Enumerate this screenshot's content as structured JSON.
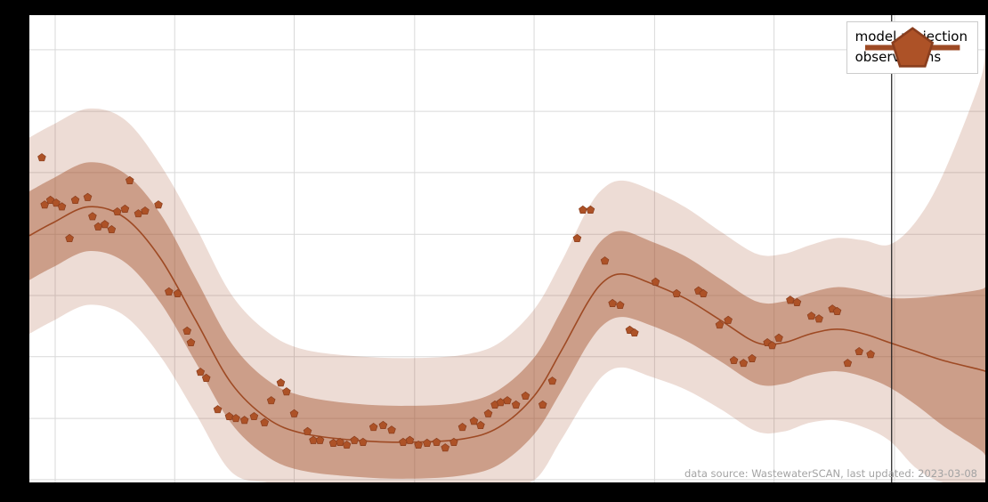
{
  "page": {
    "background": "#000000",
    "plot_background": "#ffffff"
  },
  "legend": {
    "items": [
      {
        "label": "model projection",
        "swatch": "line"
      },
      {
        "label": "observations",
        "swatch": "pentagon"
      }
    ]
  },
  "footer": {
    "text": "data source: WastewaterSCAN, last updated: 2023-03-08"
  },
  "chart_data": {
    "type": "line",
    "title": "",
    "xlabel": "",
    "ylabel": "",
    "x_range": [
      0,
      100
    ],
    "y_range": [
      0,
      100
    ],
    "grid": true,
    "gridlines_x": [
      2.7,
      15.2,
      27.7,
      40.3,
      52.8,
      65.4,
      77.9,
      90.5
    ],
    "gridlines_y": [
      0.6,
      13.7,
      26.9,
      40.0,
      53.1,
      66.3,
      79.4,
      92.6
    ],
    "vline_x": 90.2,
    "colors": {
      "line": "#9e4a24",
      "marker": "#ad5227",
      "marker_edge": "#8a3e1e",
      "band_fill_outer": "rgba(163,81,44,0.20)",
      "band_fill_inner": "rgba(163,81,44,0.45)",
      "grid": "#d9d9d9",
      "vline": "#1c1c1c"
    },
    "series": [
      {
        "name": "model projection",
        "type": "line",
        "x": [
          0,
          2.5,
          6.2,
          10.0,
          13.7,
          17.4,
          21.1,
          24.9,
          28.6,
          34.2,
          39.8,
          45.3,
          49.1,
          52.8,
          55.6,
          58.4,
          60.2,
          62.1,
          64.9,
          68.6,
          72.3,
          76.1,
          78.9,
          81.7,
          84.5,
          87.3,
          90.0,
          92.8,
          95.6,
          99.3,
          100
        ],
        "y": [
          52.8,
          55.6,
          59.0,
          56.6,
          48.0,
          34.7,
          21.3,
          13.7,
          10.5,
          9.0,
          8.6,
          9.3,
          11.8,
          18.5,
          28.0,
          38.5,
          43.2,
          44.6,
          42.7,
          39.4,
          34.7,
          29.9,
          29.9,
          31.8,
          32.8,
          31.8,
          29.9,
          28.0,
          26.1,
          24.2,
          23.8
        ]
      }
    ],
    "bands": [
      {
        "name": "outer 95% interval",
        "x": [
          0,
          2.5,
          6.2,
          10.0,
          13.7,
          17.4,
          21.1,
          24.9,
          28.6,
          34.2,
          39.8,
          45.3,
          49.1,
          52.8,
          55.6,
          58.4,
          60.2,
          62.1,
          64.9,
          68.6,
          72.3,
          76.1,
          78.9,
          81.7,
          84.5,
          87.3,
          90.0,
          92.8,
          95.6,
          99.3,
          100
        ],
        "upper": [
          73.8,
          76.6,
          80.0,
          77.6,
          68.0,
          54.7,
          40.3,
          32.2,
          28.5,
          27.0,
          26.6,
          27.3,
          29.8,
          37.0,
          47.0,
          58.5,
          63.2,
          64.6,
          62.7,
          58.9,
          53.7,
          48.9,
          48.9,
          50.8,
          52.3,
          51.8,
          50.9,
          56.0,
          66.0,
          85.0,
          92.0
        ],
        "lower": [
          31.8,
          34.6,
          38.0,
          35.6,
          27.0,
          14.7,
          2.3,
          0,
          0,
          0,
          0,
          0,
          0,
          0.5,
          9.0,
          18.5,
          23.2,
          24.6,
          22.7,
          19.9,
          15.7,
          10.9,
          10.9,
          12.8,
          13.3,
          11.8,
          8.9,
          3.0,
          0,
          0,
          0
        ]
      },
      {
        "name": "inner 50% interval",
        "x": [
          0,
          2.5,
          6.2,
          10.0,
          13.7,
          17.4,
          21.1,
          24.9,
          28.6,
          34.2,
          39.8,
          45.3,
          49.1,
          52.8,
          55.6,
          58.4,
          60.2,
          62.1,
          64.9,
          68.6,
          72.3,
          76.1,
          78.9,
          81.7,
          84.5,
          87.3,
          90.0,
          92.8,
          95.6,
          99.3,
          100
        ],
        "upper": [
          62.3,
          65.1,
          68.5,
          66.1,
          57.5,
          43.7,
          29.9,
          21.9,
          18.5,
          16.8,
          16.4,
          17.1,
          19.8,
          26.7,
          36.6,
          47.5,
          52.4,
          53.8,
          51.7,
          48.4,
          43.5,
          38.7,
          38.7,
          40.6,
          41.8,
          41.0,
          39.5,
          39.5,
          40.1,
          41.2,
          41.8
        ],
        "lower": [
          43.3,
          46.1,
          49.5,
          47.1,
          38.5,
          25.7,
          12.7,
          5.5,
          2.5,
          1.2,
          0.8,
          1.5,
          3.8,
          10.3,
          19.4,
          29.5,
          34.0,
          35.4,
          33.7,
          30.4,
          25.9,
          21.1,
          21.1,
          23.0,
          23.8,
          22.6,
          20.3,
          16.5,
          12.1,
          7.2,
          5.8
        ]
      }
    ],
    "observations": {
      "name": "observations",
      "marker": "pentagon",
      "points": [
        [
          1.3,
          69.5
        ],
        [
          1.6,
          59.4
        ],
        [
          2.2,
          60.4
        ],
        [
          2.8,
          59.8
        ],
        [
          3.4,
          59.0
        ],
        [
          4.2,
          52.2
        ],
        [
          4.8,
          60.4
        ],
        [
          6.1,
          61.0
        ],
        [
          6.6,
          56.9
        ],
        [
          7.2,
          54.7
        ],
        [
          7.9,
          55.2
        ],
        [
          8.6,
          54.1
        ],
        [
          9.2,
          57.9
        ],
        [
          10.0,
          58.5
        ],
        [
          10.5,
          64.6
        ],
        [
          11.4,
          57.5
        ],
        [
          12.1,
          58.1
        ],
        [
          13.5,
          59.4
        ],
        [
          14.6,
          40.8
        ],
        [
          15.5,
          40.4
        ],
        [
          16.5,
          32.4
        ],
        [
          16.9,
          29.9
        ],
        [
          17.9,
          23.6
        ],
        [
          18.5,
          22.3
        ],
        [
          19.7,
          15.6
        ],
        [
          20.9,
          14.1
        ],
        [
          21.6,
          13.7
        ],
        [
          22.5,
          13.3
        ],
        [
          23.5,
          14.1
        ],
        [
          24.6,
          12.8
        ],
        [
          25.3,
          17.5
        ],
        [
          26.3,
          21.3
        ],
        [
          26.9,
          19.4
        ],
        [
          27.7,
          14.7
        ],
        [
          29.1,
          10.9
        ],
        [
          29.7,
          9.0
        ],
        [
          30.4,
          9.0
        ],
        [
          31.8,
          8.4
        ],
        [
          32.5,
          8.6
        ],
        [
          33.2,
          8.0
        ],
        [
          34.0,
          9.0
        ],
        [
          34.9,
          8.6
        ],
        [
          36.0,
          11.8
        ],
        [
          37.0,
          12.2
        ],
        [
          37.9,
          11.2
        ],
        [
          39.1,
          8.6
        ],
        [
          39.8,
          9.0
        ],
        [
          40.7,
          8.0
        ],
        [
          41.6,
          8.4
        ],
        [
          42.6,
          8.6
        ],
        [
          43.5,
          7.4
        ],
        [
          44.4,
          8.6
        ],
        [
          45.3,
          11.8
        ],
        [
          46.5,
          13.1
        ],
        [
          47.2,
          12.2
        ],
        [
          48.0,
          14.7
        ],
        [
          48.7,
          16.6
        ],
        [
          49.3,
          17.1
        ],
        [
          50.0,
          17.5
        ],
        [
          50.9,
          16.6
        ],
        [
          51.9,
          18.5
        ],
        [
          53.7,
          16.6
        ],
        [
          54.7,
          21.7
        ],
        [
          57.3,
          52.2
        ],
        [
          57.9,
          58.3
        ],
        [
          58.7,
          58.3
        ],
        [
          60.2,
          47.4
        ],
        [
          61.0,
          38.3
        ],
        [
          61.8,
          37.9
        ],
        [
          62.8,
          32.6
        ],
        [
          63.3,
          32.0
        ],
        [
          65.5,
          42.9
        ],
        [
          67.7,
          40.4
        ],
        [
          70.0,
          41.0
        ],
        [
          70.5,
          40.4
        ],
        [
          72.2,
          33.7
        ],
        [
          73.1,
          34.7
        ],
        [
          73.7,
          26.1
        ],
        [
          74.7,
          25.5
        ],
        [
          75.6,
          26.5
        ],
        [
          77.2,
          29.9
        ],
        [
          77.7,
          29.3
        ],
        [
          78.4,
          30.9
        ],
        [
          79.6,
          39.0
        ],
        [
          80.3,
          38.5
        ],
        [
          81.8,
          35.6
        ],
        [
          82.6,
          35.0
        ],
        [
          84.0,
          37.1
        ],
        [
          84.5,
          36.6
        ],
        [
          85.6,
          25.5
        ],
        [
          86.8,
          28.0
        ],
        [
          88.0,
          27.4
        ]
      ]
    }
  }
}
